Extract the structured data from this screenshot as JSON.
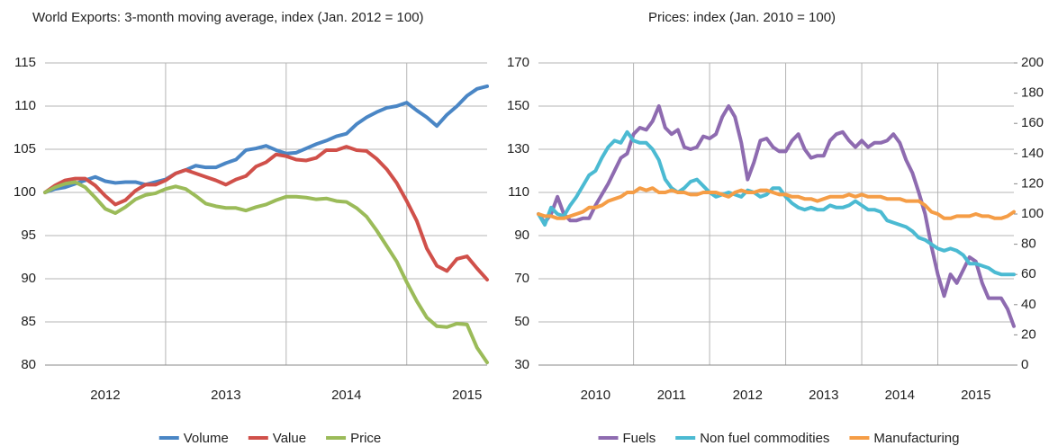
{
  "chart_data": [
    {
      "type": "line",
      "title": "World Exports: 3-month moving average, index (Jan. 2012 = 100)",
      "categories": [
        null,
        null,
        null,
        null,
        null,
        null,
        "2012",
        null,
        null,
        null,
        null,
        null,
        null,
        null,
        null,
        null,
        null,
        null,
        "2013",
        null,
        null,
        null,
        null,
        null,
        null,
        null,
        null,
        null,
        null,
        null,
        "2014",
        null,
        null,
        null,
        null,
        null,
        null,
        null,
        null,
        null,
        null,
        null,
        "2015",
        null,
        null
      ],
      "series": [
        {
          "name": "Volume",
          "color": "#4a86c5",
          "values": [
            100,
            100.4,
            100.6,
            101,
            101.4,
            101.8,
            101.3,
            101.1,
            101.2,
            101.2,
            100.9,
            101.2,
            101.5,
            102.2,
            102.6,
            103.1,
            102.9,
            102.9,
            103.4,
            103.8,
            104.9,
            105.1,
            105.4,
            104.9,
            104.5,
            104.6,
            105.1,
            105.6,
            106.0,
            106.5,
            106.8,
            107.9,
            108.7,
            109.3,
            109.8,
            110.0,
            110.4,
            109.5,
            108.7,
            107.7,
            109.0,
            110.0,
            111.2,
            112.0,
            112.3
          ]
        },
        {
          "name": "Value",
          "color": "#d0504a",
          "values": [
            100,
            100.8,
            101.4,
            101.6,
            101.6,
            100.8,
            99.6,
            98.6,
            99.1,
            100.2,
            100.9,
            100.9,
            101.4,
            102.2,
            102.6,
            102.2,
            101.8,
            101.4,
            100.9,
            101.5,
            101.9,
            103.0,
            103.5,
            104.4,
            104.2,
            103.8,
            103.7,
            104.0,
            104.9,
            104.9,
            105.3,
            104.9,
            104.8,
            103.9,
            102.7,
            101.1,
            99.0,
            96.7,
            93.5,
            91.5,
            90.9,
            92.3,
            92.6,
            91.2,
            89.9
          ]
        },
        {
          "name": "Price",
          "color": "#9bbb59",
          "values": [
            100,
            100.6,
            101.0,
            101.2,
            100.6,
            99.4,
            98.1,
            97.6,
            98.3,
            99.2,
            99.7,
            99.9,
            100.4,
            100.7,
            100.4,
            99.6,
            98.7,
            98.4,
            98.2,
            98.2,
            97.9,
            98.3,
            98.6,
            99.1,
            99.5,
            99.5,
            99.4,
            99.2,
            99.3,
            99.0,
            98.9,
            98.2,
            97.2,
            95.6,
            93.8,
            92.0,
            89.6,
            87.4,
            85.5,
            84.5,
            84.4,
            84.8,
            84.7,
            82.0,
            80.3
          ]
        }
      ],
      "ylim": [
        80,
        115
      ],
      "yticks": [
        80,
        85,
        90,
        95,
        100,
        105,
        110,
        115
      ],
      "grid": true,
      "legend": "bottom"
    },
    {
      "type": "line",
      "title": "Prices: index (Jan. 2010 = 100)",
      "categories": [
        null,
        null,
        null,
        null,
        null,
        null,
        null,
        null,
        null,
        "2010",
        null,
        null,
        null,
        null,
        null,
        null,
        null,
        null,
        null,
        null,
        null,
        "2011",
        null,
        null,
        null,
        null,
        null,
        null,
        null,
        null,
        null,
        null,
        null,
        "2012",
        null,
        null,
        null,
        null,
        null,
        null,
        null,
        null,
        null,
        null,
        null,
        "2013",
        null,
        null,
        null,
        null,
        null,
        null,
        null,
        null,
        null,
        null,
        null,
        "2014",
        null,
        null,
        null,
        null,
        null,
        null,
        null,
        null,
        null,
        null,
        null,
        "2015",
        null,
        null,
        null,
        null,
        null,
        null
      ],
      "series": [
        {
          "name": "Fuels",
          "color": "#8e6bb0",
          "values": [
            100,
            96,
            100,
            108,
            100,
            97,
            97,
            98,
            98,
            104,
            109,
            114,
            120,
            126,
            128,
            137,
            140,
            139,
            143,
            150,
            140,
            137,
            139,
            131,
            130,
            131,
            136,
            135,
            137,
            145,
            150,
            145,
            133,
            116,
            124,
            134,
            135,
            131,
            129,
            129,
            134,
            137,
            130,
            126,
            127,
            127,
            134,
            137,
            138,
            134,
            131,
            134,
            131,
            133,
            133,
            134,
            137,
            133,
            125,
            119,
            110,
            100,
            85,
            72,
            62,
            72,
            68,
            74,
            80,
            78,
            68,
            61,
            61,
            61,
            56,
            48
          ]
        },
        {
          "name": "Non fuel commodities",
          "color": "#4bbad2",
          "values": [
            100,
            95,
            103,
            100,
            99,
            104,
            108,
            113,
            118,
            120,
            126,
            131,
            134,
            133,
            138,
            134,
            133,
            133,
            130,
            125,
            116,
            112,
            110,
            112,
            115,
            116,
            113,
            110,
            108,
            109,
            110,
            109,
            108,
            111,
            110,
            108,
            109,
            112,
            112,
            108,
            105,
            103,
            102,
            103,
            102,
            102,
            104,
            103,
            103,
            104,
            106,
            104,
            102,
            102,
            101,
            97,
            96,
            95,
            94,
            92,
            89,
            88,
            86,
            84,
            83,
            84,
            83,
            81,
            77,
            77,
            76,
            75,
            73,
            72,
            72,
            72
          ]
        },
        {
          "name": "Manufacturing",
          "color": "#f59d46",
          "values": [
            100,
            99,
            99,
            98,
            98,
            99,
            100,
            101,
            103,
            103,
            104,
            106,
            107,
            108,
            110,
            110,
            112,
            111,
            112,
            110,
            110,
            111,
            110,
            110,
            109,
            109,
            110,
            110,
            110,
            109,
            108,
            110,
            111,
            110,
            110,
            111,
            111,
            110,
            109,
            109,
            108,
            108,
            107,
            107,
            106,
            107,
            108,
            108,
            108,
            109,
            108,
            109,
            108,
            108,
            108,
            107,
            107,
            107,
            106,
            106,
            106,
            104,
            101,
            100,
            98,
            98,
            99,
            99,
            99,
            100,
            99,
            99,
            98,
            98,
            99,
            101
          ]
        }
      ],
      "ylim": [
        30,
        170
      ],
      "yticks": [
        30,
        50,
        70,
        90,
        110,
        130,
        150,
        170
      ],
      "y2lim": [
        0,
        200
      ],
      "y2ticks": [
        0,
        20,
        40,
        60,
        80,
        100,
        120,
        140,
        160,
        180,
        200
      ],
      "grid": true,
      "legend": "bottom"
    }
  ]
}
